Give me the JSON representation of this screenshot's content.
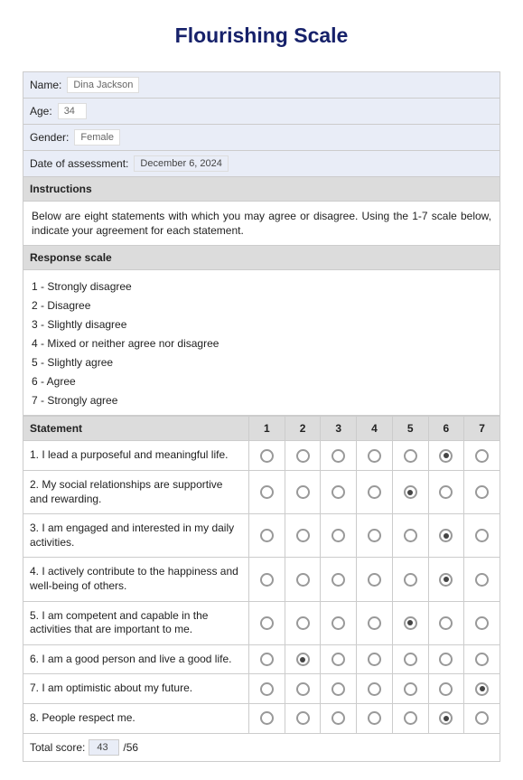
{
  "title": "Flourishing Scale",
  "info": {
    "name_label": "Name:",
    "name_value": "Dina Jackson",
    "age_label": "Age:",
    "age_value": "34",
    "gender_label": "Gender:",
    "gender_value": "Female",
    "date_label": "Date of assessment:",
    "date_value": "December 6, 2024"
  },
  "instructions_head": "Instructions",
  "instructions_text": "Below are eight statements with which you may agree or disagree. Using the 1-7 scale below, indicate your agreement for each statement.",
  "scale_head": "Response scale",
  "scale_items": [
    "1 - Strongly disagree",
    "2 - Disagree",
    "3 - Slightly disagree",
    "4 - Mixed or neither agree nor disagree",
    "5 - Slightly agree",
    "6 - Agree",
    "7 - Strongly agree"
  ],
  "table": {
    "head_statement": "Statement",
    "cols": [
      "1",
      "2",
      "3",
      "4",
      "5",
      "6",
      "7"
    ],
    "rows": [
      {
        "statement": "1. I lead a purposeful and meaningful life.",
        "selected": 6
      },
      {
        "statement": "2. My social relationships are supportive and rewarding.",
        "selected": 5
      },
      {
        "statement": "3. I am engaged and interested in my daily activities.",
        "selected": 6
      },
      {
        "statement": "4. I actively contribute to the happiness and well-being of others.",
        "selected": 6
      },
      {
        "statement": "5. I am competent and capable in the activities that are important to me.",
        "selected": 5
      },
      {
        "statement": "6. I am a good person and live a good life.",
        "selected": 2
      },
      {
        "statement": "7. I am optimistic about my future.",
        "selected": 7
      },
      {
        "statement": "8. People respect me.",
        "selected": 6
      }
    ]
  },
  "total": {
    "label": "Total score:",
    "value": "43",
    "max": "/56"
  },
  "styling": {
    "title_color": "#16216a",
    "row_bg": "#e9edf7",
    "head_bg": "#dcdcdc",
    "border_color": "#cccccc"
  }
}
